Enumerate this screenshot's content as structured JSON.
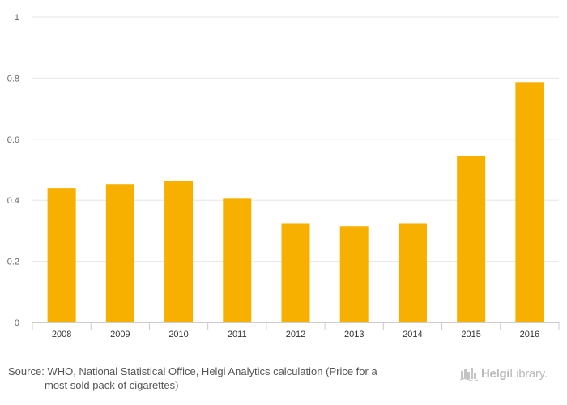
{
  "chart_data": {
    "type": "bar",
    "categories": [
      "2008",
      "2009",
      "2010",
      "2011",
      "2012",
      "2013",
      "2014",
      "2015",
      "2016"
    ],
    "values": [
      0.44,
      0.453,
      0.463,
      0.405,
      0.325,
      0.315,
      0.325,
      0.545,
      0.787
    ],
    "y_ticks": [
      "0",
      "0.2",
      "0.4",
      "0.6",
      "0.8",
      "1"
    ],
    "ylim": [
      0,
      1
    ],
    "grid": true,
    "bar_color": "#F8B000"
  },
  "footer": {
    "source_label": "Source:",
    "source_line1": "WHO, National Statistical Office, Helgi Analytics calculation (Price for a",
    "source_line2": "most sold pack of cigarettes)"
  },
  "logo": {
    "name_bold": "Helgi",
    "name_light": "Library.",
    "icon": "helgi-library-logo-icon"
  }
}
